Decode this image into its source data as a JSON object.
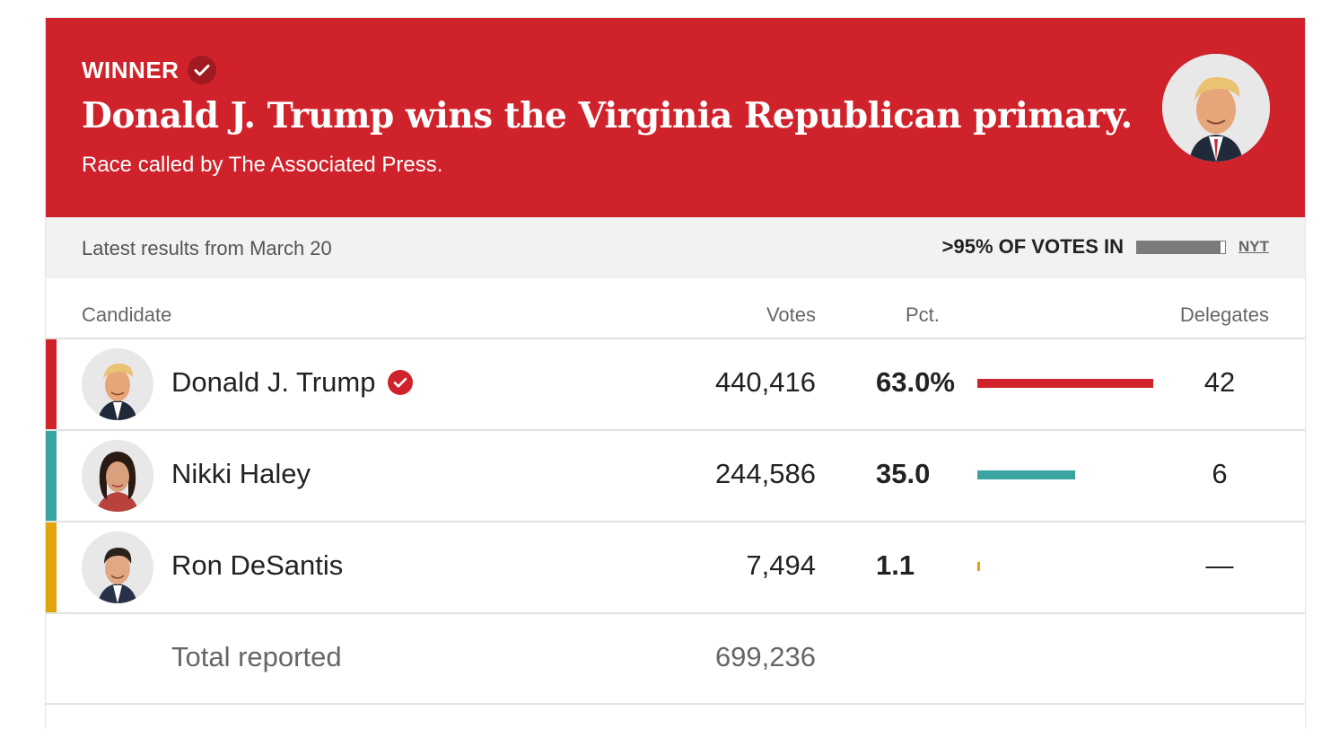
{
  "banner": {
    "winner_label": "WINNER",
    "title": "Donald J. Trump wins the Virginia Republican primary.",
    "subtitle": "Race called by The Associated Press.",
    "color": "#d0222b"
  },
  "status": {
    "latest": "Latest results from March 20",
    "votes_in": ">95% OF VOTES IN",
    "reporting_fraction": 0.95,
    "source": "NYT"
  },
  "columns": {
    "candidate": "Candidate",
    "votes": "Votes",
    "pct": "Pct.",
    "delegates": "Delegates"
  },
  "candidates": [
    {
      "name": "Donald J. Trump",
      "votes": "440,416",
      "pct": "63.0%",
      "pct_value": 63.0,
      "delegates": "42",
      "color": "#d0222b",
      "winner": true,
      "avatar": "trump-photo"
    },
    {
      "name": "Nikki Haley",
      "votes": "244,586",
      "pct": "35.0",
      "pct_value": 35.0,
      "delegates": "6",
      "color": "#3aa4a2",
      "winner": false,
      "avatar": "haley-photo"
    },
    {
      "name": "Ron DeSantis",
      "votes": "7,494",
      "pct": "1.1",
      "pct_value": 1.1,
      "delegates": "—",
      "color": "#e0a50b",
      "winner": false,
      "avatar": "desantis-photo"
    }
  ],
  "total": {
    "label": "Total reported",
    "votes": "699,236"
  },
  "icons": {
    "check": "check-circle-icon"
  }
}
